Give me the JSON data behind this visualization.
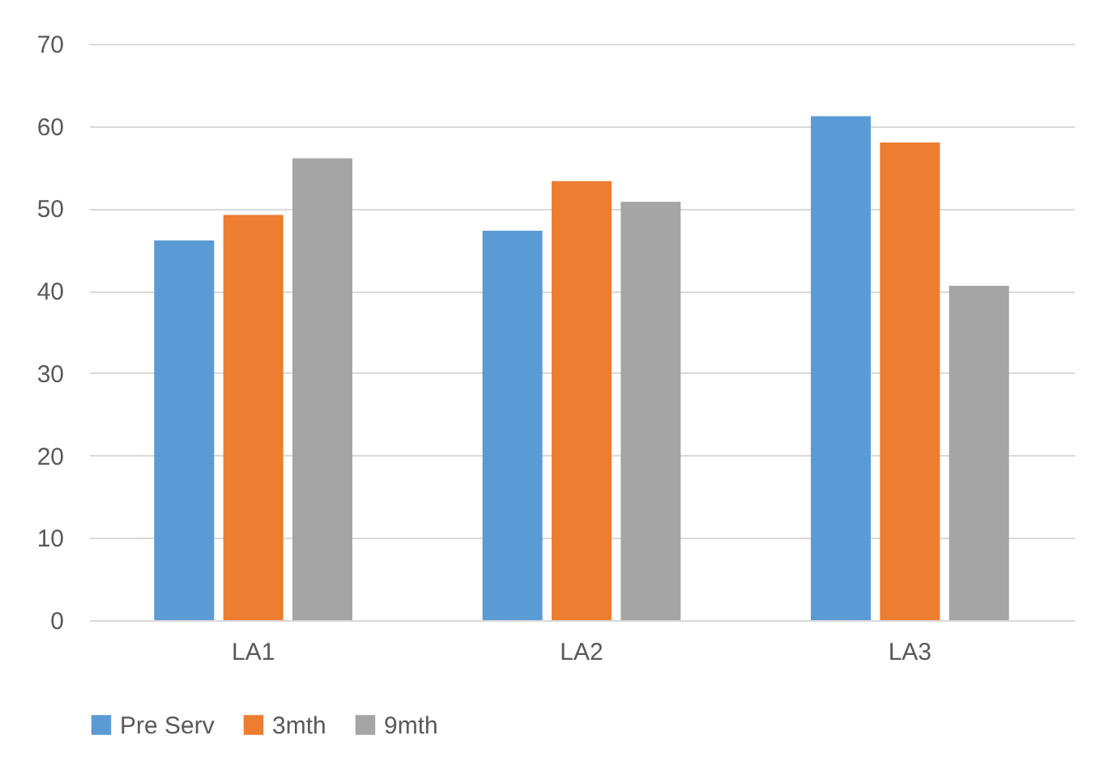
{
  "chart_data": {
    "type": "bar",
    "categories": [
      "LA1",
      "LA2",
      "LA3"
    ],
    "series": [
      {
        "name": "Pre Serv",
        "color": "#5b9bd5",
        "values": [
          46.1,
          47.3,
          61.2
        ]
      },
      {
        "name": "3mth",
        "color": "#ed7d31",
        "values": [
          49.2,
          53.3,
          58.0
        ]
      },
      {
        "name": "9mth",
        "color": "#a5a5a5",
        "values": [
          56.1,
          50.8,
          40.6
        ]
      }
    ],
    "ylim": [
      0,
      70
    ],
    "yticks": [
      0,
      10,
      20,
      30,
      40,
      50,
      60,
      70
    ],
    "grid": "y",
    "legend": "bottom"
  }
}
